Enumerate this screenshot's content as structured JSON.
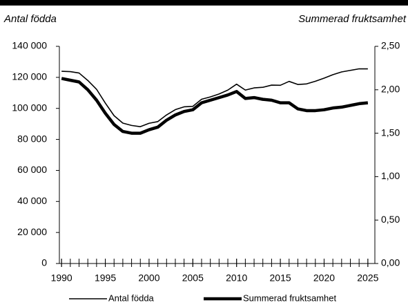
{
  "chart_data": {
    "type": "line",
    "y_label": "Antal födda",
    "y2_label": "Summerad fruktsamhet",
    "x": [
      1990,
      1991,
      1992,
      1993,
      1994,
      1995,
      1996,
      1997,
      1998,
      1999,
      2000,
      2001,
      2002,
      2003,
      2004,
      2005,
      2006,
      2007,
      2008,
      2009,
      2010,
      2011,
      2012,
      2013,
      2014,
      2015,
      2016,
      2017,
      2018,
      2019,
      2020,
      2021,
      2022,
      2023,
      2024,
      2025
    ],
    "series": [
      {
        "name": "Antal födda",
        "color": "#000000",
        "width": 1.6,
        "values": [
          123900,
          123700,
          122800,
          118000,
          112300,
          103400,
          95300,
          90500,
          89000,
          88200,
          90400,
          91500,
          95800,
          99200,
          101000,
          101300,
          105900,
          107400,
          109300,
          111800,
          115600,
          111800,
          113200,
          113600,
          115000,
          114900,
          117400,
          115400,
          115800,
          117500,
          119500,
          121700,
          123500,
          124500,
          125500,
          125500
        ]
      },
      {
        "name": "Summerad fruktsamhet",
        "color": "#000000",
        "width": 4.5,
        "axis": "y2",
        "values": [
          2.13,
          2.11,
          2.09,
          2.0,
          1.88,
          1.73,
          1.6,
          1.52,
          1.5,
          1.5,
          1.54,
          1.57,
          1.65,
          1.71,
          1.75,
          1.77,
          1.85,
          1.88,
          1.91,
          1.94,
          1.98,
          1.9,
          1.91,
          1.89,
          1.88,
          1.85,
          1.85,
          1.78,
          1.76,
          1.76,
          1.77,
          1.79,
          1.8,
          1.82,
          1.84,
          1.85
        ]
      }
    ],
    "xlim": [
      1989.75,
      2025.8
    ],
    "xticks": [
      1990,
      1995,
      2000,
      2005,
      2010,
      2015,
      2020,
      2025
    ],
    "ylim": [
      0,
      140000
    ],
    "yticks": [
      0,
      {
        "value": 20000,
        "label": "20 000"
      },
      {
        "value": 40000,
        "label": "40 000"
      },
      {
        "value": 60000,
        "label": "60 000"
      },
      {
        "value": 80000,
        "label": "80 000"
      },
      {
        "value": 100000,
        "label": "100 000"
      },
      {
        "value": 120000,
        "label": "120 000"
      },
      {
        "value": 140000,
        "label": "140 000"
      }
    ],
    "y2lim": [
      0,
      2.5
    ],
    "y2ticks": [
      {
        "value": 0,
        "label": "0,00"
      },
      {
        "value": 0.5,
        "label": "0,50"
      },
      {
        "value": 1,
        "label": "1,00"
      },
      {
        "value": 1.5,
        "label": "1,50"
      },
      {
        "value": 2,
        "label": "2,00"
      },
      {
        "value": 2.5,
        "label": "2,50"
      }
    ],
    "legend": "bottom"
  }
}
